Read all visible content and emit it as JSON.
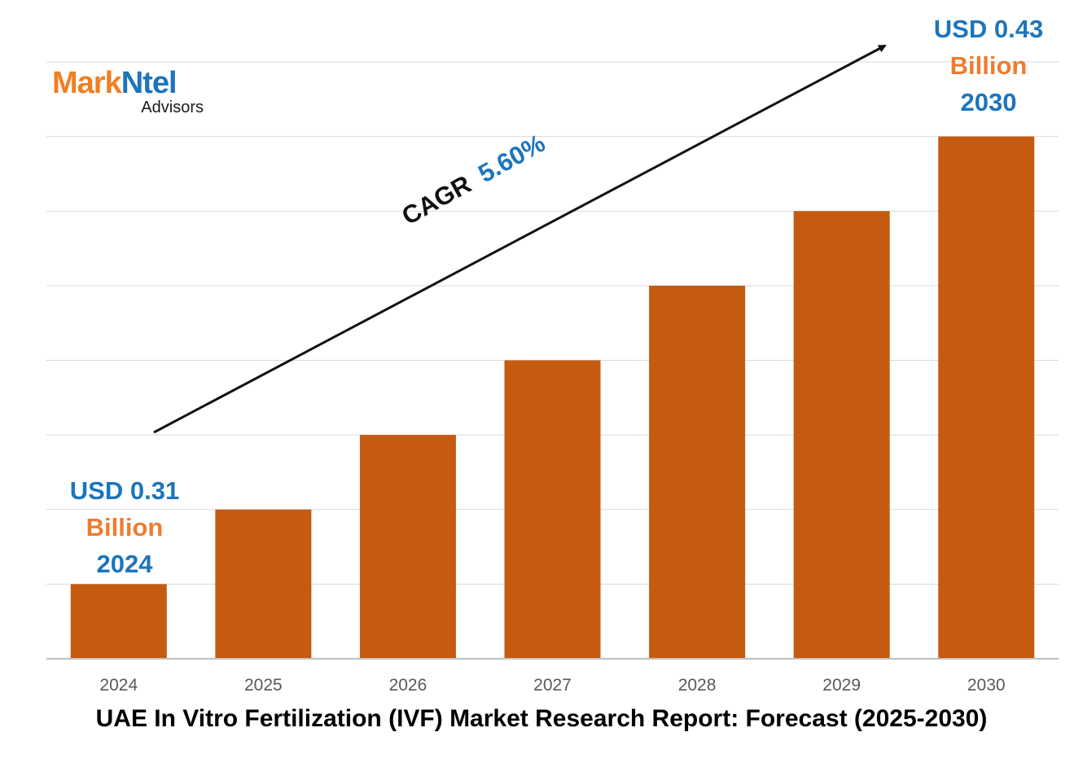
{
  "logo": {
    "part1": "Mark",
    "part2": "Ntel",
    "sub": "Advisors"
  },
  "chart_data": {
    "type": "bar",
    "title": "UAE In Vitro Fertilization (IVF) Market Research Report: Forecast (2025-2030)",
    "categories": [
      "2024",
      "2025",
      "2026",
      "2027",
      "2028",
      "2029",
      "2030"
    ],
    "values": [
      1,
      2,
      3,
      4,
      5,
      6,
      7
    ],
    "ylim": [
      0,
      8
    ],
    "grid": true,
    "xlabel": "",
    "ylabel": "",
    "bar_color": "#c55a11",
    "annotations": {
      "start": {
        "line1": "USD 0.31",
        "line2": "Billion",
        "line3": "2024"
      },
      "end": {
        "line1": "USD 0.43",
        "line2": "Billion",
        "line3": "2030"
      },
      "cagr_label": "CAGR",
      "cagr_value": "5.60%"
    }
  },
  "colors": {
    "accent_blue": "#1c75bc",
    "accent_orange": "#ed7d31",
    "grid": "#d9d9d9",
    "axis": "#bfbfbf"
  }
}
